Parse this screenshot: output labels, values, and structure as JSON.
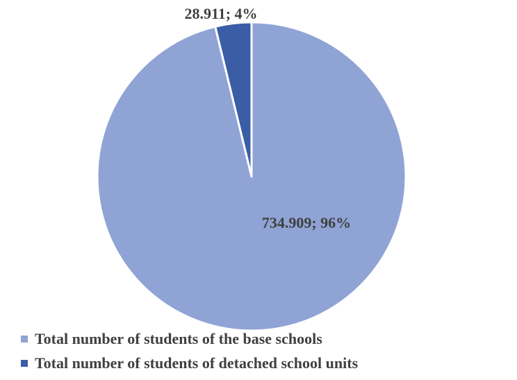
{
  "chart_data": {
    "type": "pie",
    "title": "",
    "categories": [
      "Total number of students of the base schools",
      "Total number of students of detached school units"
    ],
    "values": [
      734909,
      28911
    ],
    "data_labels": [
      "734.909; 96%",
      "28.911; 4%"
    ],
    "colors": [
      "#8FA3D5",
      "#3B5DA6"
    ],
    "legend_position": "bottom"
  }
}
